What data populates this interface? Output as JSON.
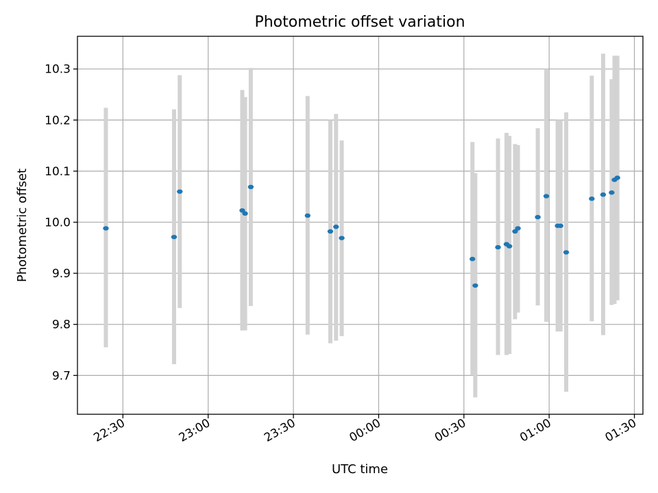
{
  "chart_data": {
    "type": "scatter",
    "title": "Photometric offset variation",
    "xlabel": "UTC time",
    "ylabel": "Photometric offset",
    "grid": true,
    "x_tick_labels": [
      "22:30",
      "23:00",
      "23:30",
      "00:00",
      "00:30",
      "01:00",
      "01:30"
    ],
    "y_tick_labels": [
      "9.7",
      "9.8",
      "9.9",
      "10.0",
      "10.1",
      "10.2",
      "10.3"
    ],
    "ylim": [
      9.624,
      10.364
    ],
    "xlim": [
      "22:14",
      "01:33"
    ],
    "colors": {
      "point": "#1f77b4",
      "errorbar": "#d3d3d3"
    },
    "series": [
      {
        "points": [
          {
            "x": "22:24",
            "y": 9.988,
            "ylow": 9.755,
            "yhigh": 10.224
          },
          {
            "x": "22:48",
            "y": 9.971,
            "ylow": 9.722,
            "yhigh": 10.221
          },
          {
            "x": "22:50",
            "y": 10.06,
            "ylow": 9.832,
            "yhigh": 10.288
          },
          {
            "x": "23:12",
            "y": 10.023,
            "ylow": 9.788,
            "yhigh": 10.259
          },
          {
            "x": "23:13",
            "y": 10.017,
            "ylow": 9.788,
            "yhigh": 10.245
          },
          {
            "x": "23:15",
            "y": 10.069,
            "ylow": 9.836,
            "yhigh": 10.302
          },
          {
            "x": "23:35",
            "y": 10.013,
            "ylow": 9.78,
            "yhigh": 10.247
          },
          {
            "x": "23:43",
            "y": 9.982,
            "ylow": 9.763,
            "yhigh": 10.2
          },
          {
            "x": "23:45",
            "y": 9.991,
            "ylow": 9.768,
            "yhigh": 10.212
          },
          {
            "x": "23:47",
            "y": 9.969,
            "ylow": 9.777,
            "yhigh": 10.16
          },
          {
            "x": "00:33",
            "y": 9.928,
            "ylow": 9.7,
            "yhigh": 10.157
          },
          {
            "x": "00:34",
            "y": 9.876,
            "ylow": 9.657,
            "yhigh": 10.096
          },
          {
            "x": "00:42",
            "y": 9.951,
            "ylow": 9.74,
            "yhigh": 10.164
          },
          {
            "x": "00:45",
            "y": 9.957,
            "ylow": 9.74,
            "yhigh": 10.175
          },
          {
            "x": "00:46",
            "y": 9.953,
            "ylow": 9.742,
            "yhigh": 10.169
          },
          {
            "x": "00:48",
            "y": 9.982,
            "ylow": 9.81,
            "yhigh": 10.153
          },
          {
            "x": "00:49",
            "y": 9.988,
            "ylow": 9.823,
            "yhigh": 10.151
          },
          {
            "x": "00:56",
            "y": 10.01,
            "ylow": 9.837,
            "yhigh": 10.184
          },
          {
            "x": "00:59",
            "y": 10.051,
            "ylow": 9.805,
            "yhigh": 10.3
          },
          {
            "x": "01:03",
            "y": 9.993,
            "ylow": 9.786,
            "yhigh": 10.2
          },
          {
            "x": "01:04",
            "y": 9.993,
            "ylow": 9.786,
            "yhigh": 10.2
          },
          {
            "x": "01:06",
            "y": 9.941,
            "ylow": 9.668,
            "yhigh": 10.215
          },
          {
            "x": "01:15",
            "y": 10.046,
            "ylow": 9.806,
            "yhigh": 10.287
          },
          {
            "x": "01:19",
            "y": 10.054,
            "ylow": 9.779,
            "yhigh": 10.33
          },
          {
            "x": "01:22",
            "y": 10.058,
            "ylow": 9.838,
            "yhigh": 10.28
          },
          {
            "x": "01:23",
            "y": 10.083,
            "ylow": 9.84,
            "yhigh": 10.326
          },
          {
            "x": "01:24",
            "y": 10.087,
            "ylow": 9.847,
            "yhigh": 10.326
          }
        ]
      }
    ]
  }
}
